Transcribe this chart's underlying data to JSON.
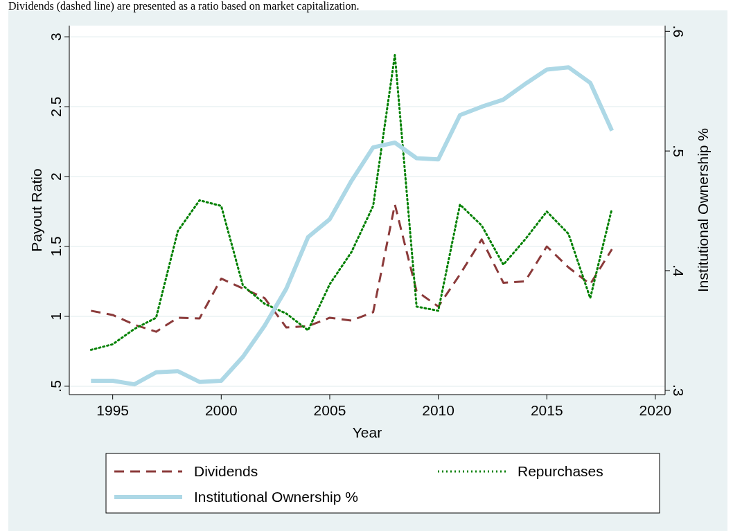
{
  "chart_data": {
    "type": "line",
    "annotations": [
      "Dividends (dashed line) are presented as a ratio based on market capitalization."
    ],
    "xlabel": "Year",
    "ylabel": "Payout Ratio",
    "y2label": "Institutional Ownership %",
    "x": [
      1994,
      1995,
      1996,
      1997,
      1998,
      1999,
      2000,
      2001,
      2002,
      2003,
      2004,
      2005,
      2006,
      2007,
      2008,
      2009,
      2010,
      2011,
      2012,
      2013,
      2014,
      2015,
      2016,
      2017,
      2018
    ],
    "series": [
      {
        "name": "Dividends",
        "color": "#8b3a3a",
        "line_style": "dashed",
        "values": [
          1.04,
          1.01,
          0.94,
          0.89,
          0.99,
          0.985,
          1.27,
          1.2,
          1.13,
          0.92,
          0.93,
          0.99,
          0.97,
          1.03,
          1.8,
          1.18,
          1.07,
          1.3,
          1.55,
          1.24,
          1.25,
          1.5,
          1.35,
          1.23,
          1.48
        ]
      },
      {
        "name": "Repurchases",
        "color": "#008000",
        "line_style": "dotted",
        "values": [
          0.76,
          0.8,
          0.91,
          0.99,
          1.61,
          1.83,
          1.79,
          1.22,
          1.09,
          1.02,
          0.9,
          1.23,
          1.46,
          1.79,
          2.87,
          1.07,
          1.04,
          1.8,
          1.65,
          1.37,
          1.55,
          1.75,
          1.59,
          1.13,
          1.77
        ]
      },
      {
        "name": "Institutional Ownership %",
        "color": "#add8e6",
        "line_style": "solid",
        "axis": "y2",
        "values": [
          0.308,
          0.308,
          0.305,
          0.315,
          0.316,
          0.307,
          0.308,
          0.328,
          0.354,
          0.385,
          0.428,
          0.443,
          0.475,
          0.503,
          0.507,
          0.494,
          0.493,
          0.53,
          0.537,
          0.543,
          0.556,
          0.568,
          0.57,
          0.557,
          0.517
        ]
      }
    ],
    "xlim": [
      1993,
      2020.45
    ],
    "xticks": [
      1995,
      2000,
      2005,
      2010,
      2015,
      2020
    ],
    "ylim": [
      0.44,
      3.08
    ],
    "yticks": [
      {
        "value": 0.5,
        "label": ".5"
      },
      1,
      1.5,
      2,
      2.5,
      3
    ],
    "y2lim": [
      0.2964,
      0.6048
    ],
    "y2ticks": [
      {
        "value": 0.3,
        "label": ".3"
      },
      {
        "value": 0.4,
        "label": ".4"
      },
      {
        "value": 0.5,
        "label": ".5"
      },
      {
        "value": 0.6,
        "label": ".6"
      }
    ],
    "grid": "y",
    "legend": "bottom",
    "marker": "none"
  }
}
